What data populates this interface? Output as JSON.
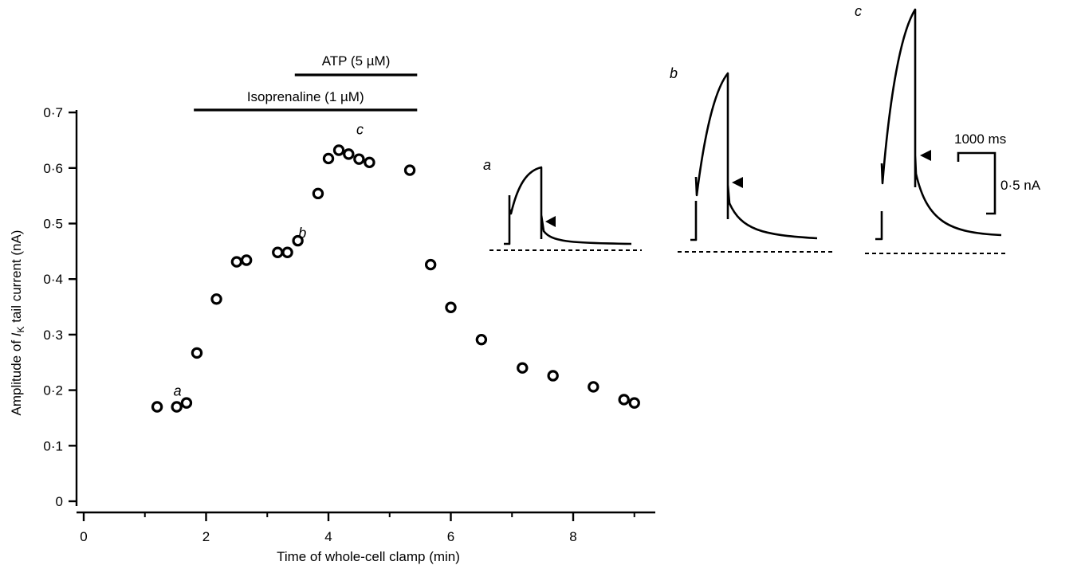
{
  "chart_data": {
    "type": "scatter",
    "xlabel": "Time of whole-cell clamp (min)",
    "ylabel_prefix": "Amplitude of ",
    "ylabel_symbol": "I",
    "ylabel_subscript": "K",
    "ylabel_suffix": " tail current (nA)",
    "xlim": [
      0,
      9.3
    ],
    "ylim": [
      0,
      0.72
    ],
    "x_ticks": [
      0,
      2,
      4,
      6,
      8
    ],
    "x_tick_labels": [
      "0",
      "2",
      "4",
      "6",
      "8"
    ],
    "y_ticks": [
      0,
      0.1,
      0.2,
      0.3,
      0.4,
      0.5,
      0.6,
      0.7
    ],
    "y_tick_labels": [
      "0",
      "0·1",
      "0·2",
      "0·3",
      "0·4",
      "0·5",
      "0·6",
      "0·7"
    ],
    "points": [
      {
        "x": 1.2,
        "y": 0.17
      },
      {
        "x": 1.52,
        "y": 0.17
      },
      {
        "x": 1.68,
        "y": 0.177
      },
      {
        "x": 1.85,
        "y": 0.267
      },
      {
        "x": 2.17,
        "y": 0.364
      },
      {
        "x": 2.5,
        "y": 0.431
      },
      {
        "x": 2.66,
        "y": 0.434
      },
      {
        "x": 3.17,
        "y": 0.448
      },
      {
        "x": 3.33,
        "y": 0.448
      },
      {
        "x": 3.5,
        "y": 0.469
      },
      {
        "x": 3.83,
        "y": 0.554
      },
      {
        "x": 4.0,
        "y": 0.617
      },
      {
        "x": 4.17,
        "y": 0.632
      },
      {
        "x": 4.33,
        "y": 0.625
      },
      {
        "x": 4.5,
        "y": 0.616
      },
      {
        "x": 4.67,
        "y": 0.61
      },
      {
        "x": 5.33,
        "y": 0.596
      },
      {
        "x": 5.67,
        "y": 0.426
      },
      {
        "x": 6.0,
        "y": 0.349
      },
      {
        "x": 6.5,
        "y": 0.291
      },
      {
        "x": 7.17,
        "y": 0.24
      },
      {
        "x": 7.67,
        "y": 0.226
      },
      {
        "x": 8.33,
        "y": 0.206
      },
      {
        "x": 8.83,
        "y": 0.183
      },
      {
        "x": 9.0,
        "y": 0.177
      }
    ],
    "point_annotations": [
      {
        "label": "a",
        "x": 1.52,
        "y": 0.17
      },
      {
        "label": "b",
        "x": 3.17,
        "y": 0.448
      },
      {
        "label": "c",
        "x": 4.17,
        "y": 0.632
      }
    ],
    "treatment_bars": [
      {
        "label": "Isoprenaline (1 µM)",
        "start": 1.8,
        "end": 5.45
      },
      {
        "label": "ATP (5 µM)",
        "start": 3.45,
        "end": 5.45
      }
    ],
    "inset_traces": [
      {
        "label": "a",
        "step_amplitude_nA": 0.54,
        "tail_amplitude_nA": 0.36
      },
      {
        "label": "b",
        "step_amplitude_nA": 1.08,
        "tail_amplitude_nA": 0.58
      },
      {
        "label": "c",
        "step_amplitude_nA": 1.56,
        "tail_amplitude_nA": 0.84
      }
    ],
    "scale_bar": {
      "time_label": "1000 ms",
      "current_label": "0·5 nA",
      "time_ms": 1000,
      "current_nA": 0.5
    }
  }
}
